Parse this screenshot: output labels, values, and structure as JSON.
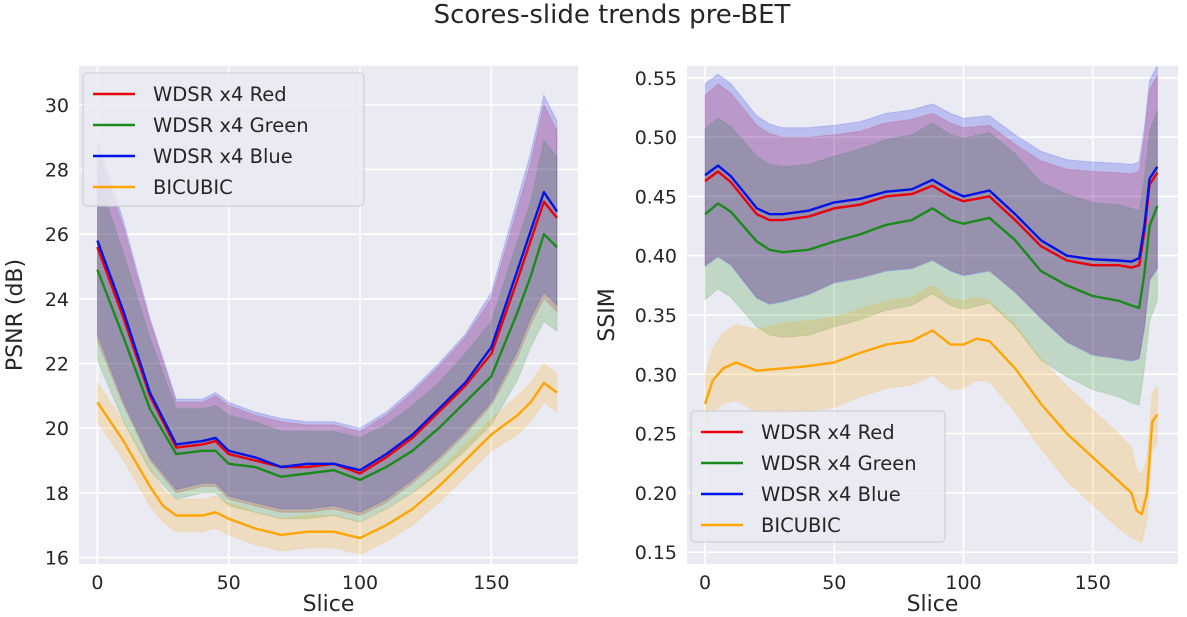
{
  "figure": {
    "suptitle": "Scores-slide trends pre-BET"
  },
  "chart_data": [
    {
      "type": "line",
      "xlabel": "Slice",
      "ylabel": "PSNR (dB)",
      "xlim": [
        -7,
        183
      ],
      "ylim": [
        15.8,
        31.2
      ],
      "xticks": [
        0,
        50,
        100,
        150
      ],
      "yticks": [
        16,
        18,
        20,
        22,
        24,
        26,
        28,
        30
      ],
      "grid": true,
      "legend": "upper-left",
      "bands": "mean ± std (shaded)",
      "series": [
        {
          "name": "WDSR x4 Red",
          "color": "#e8000b",
          "x": [
            0,
            10,
            20,
            30,
            40,
            45,
            50,
            60,
            70,
            80,
            90,
            100,
            110,
            120,
            130,
            140,
            150,
            160,
            165,
            170,
            175
          ],
          "y": [
            25.6,
            23.4,
            21.0,
            19.4,
            19.5,
            19.6,
            19.2,
            19.0,
            18.8,
            18.8,
            18.9,
            18.6,
            19.1,
            19.7,
            20.5,
            21.3,
            22.3,
            24.6,
            25.8,
            27.0,
            26.5
          ],
          "upper": [
            28.6,
            26.2,
            23.3,
            20.8,
            20.8,
            21.0,
            20.7,
            20.4,
            20.2,
            20.1,
            20.1,
            19.9,
            20.4,
            21.1,
            21.9,
            22.8,
            24.0,
            26.8,
            28.2,
            30.0,
            29.2
          ],
          "lower": [
            22.7,
            20.7,
            19.0,
            18.0,
            18.2,
            18.2,
            17.8,
            17.6,
            17.4,
            17.4,
            17.5,
            17.3,
            17.7,
            18.3,
            19.0,
            19.8,
            20.7,
            22.2,
            23.2,
            24.0,
            23.6
          ]
        },
        {
          "name": "WDSR x4 Green",
          "color": "#1a8a1a",
          "x": [
            0,
            10,
            20,
            30,
            40,
            45,
            50,
            60,
            70,
            80,
            90,
            100,
            110,
            120,
            130,
            140,
            150,
            160,
            165,
            170,
            175
          ],
          "y": [
            24.9,
            22.8,
            20.6,
            19.2,
            19.3,
            19.3,
            18.9,
            18.8,
            18.5,
            18.6,
            18.7,
            18.4,
            18.8,
            19.3,
            20.0,
            20.8,
            21.6,
            23.6,
            24.7,
            26.0,
            25.6
          ],
          "upper": [
            27.8,
            25.4,
            22.8,
            20.6,
            20.6,
            20.7,
            20.4,
            20.2,
            19.9,
            19.9,
            19.9,
            19.7,
            20.1,
            20.7,
            21.4,
            22.3,
            23.3,
            25.8,
            27.0,
            28.9,
            28.4
          ],
          "lower": [
            22.1,
            20.2,
            18.7,
            17.8,
            18.0,
            18.0,
            17.6,
            17.4,
            17.2,
            17.2,
            17.3,
            17.1,
            17.5,
            18.0,
            18.6,
            19.3,
            20.1,
            21.5,
            22.5,
            23.3,
            23.0
          ]
        },
        {
          "name": "WDSR x4 Blue",
          "color": "#0014e6",
          "x": [
            0,
            10,
            20,
            30,
            40,
            45,
            50,
            60,
            70,
            80,
            90,
            100,
            110,
            120,
            130,
            140,
            150,
            160,
            165,
            170,
            175
          ],
          "y": [
            25.8,
            23.6,
            21.1,
            19.5,
            19.6,
            19.7,
            19.3,
            19.1,
            18.8,
            18.9,
            18.9,
            18.7,
            19.2,
            19.8,
            20.6,
            21.4,
            22.5,
            24.9,
            26.1,
            27.3,
            26.7
          ],
          "upper": [
            28.9,
            26.4,
            23.4,
            20.9,
            20.9,
            21.1,
            20.8,
            20.5,
            20.3,
            20.2,
            20.2,
            20.0,
            20.5,
            21.2,
            22.0,
            22.9,
            24.2,
            27.1,
            28.5,
            30.3,
            29.5
          ],
          "lower": [
            22.9,
            20.8,
            19.1,
            18.1,
            18.3,
            18.3,
            17.9,
            17.7,
            17.5,
            17.5,
            17.6,
            17.4,
            17.8,
            18.4,
            19.1,
            19.9,
            20.8,
            22.4,
            23.4,
            24.2,
            23.8
          ]
        },
        {
          "name": "BICUBIC",
          "color": "#ffa500",
          "x": [
            0,
            10,
            20,
            25,
            30,
            40,
            45,
            50,
            60,
            70,
            80,
            90,
            100,
            110,
            120,
            130,
            140,
            150,
            160,
            165,
            170,
            175
          ],
          "y": [
            20.8,
            19.6,
            18.2,
            17.6,
            17.3,
            17.3,
            17.4,
            17.2,
            16.9,
            16.7,
            16.8,
            16.8,
            16.6,
            17.0,
            17.5,
            18.2,
            19.0,
            19.8,
            20.4,
            20.8,
            21.4,
            21.1
          ],
          "upper": [
            21.4,
            20.2,
            18.8,
            18.1,
            17.8,
            17.8,
            17.9,
            17.7,
            17.4,
            17.2,
            17.3,
            17.3,
            17.1,
            17.5,
            18.0,
            18.7,
            19.5,
            20.3,
            21.0,
            21.4,
            22.0,
            21.7
          ],
          "lower": [
            20.2,
            19.0,
            17.6,
            17.1,
            16.8,
            16.8,
            16.9,
            16.7,
            16.4,
            16.2,
            16.3,
            16.3,
            16.1,
            16.5,
            17.0,
            17.7,
            18.5,
            19.3,
            19.8,
            20.2,
            20.8,
            20.5
          ]
        }
      ]
    },
    {
      "type": "line",
      "xlabel": "Slice",
      "ylabel": "SSIM",
      "xlim": [
        -7,
        183
      ],
      "ylim": [
        0.14,
        0.56
      ],
      "xticks": [
        0,
        50,
        100,
        150
      ],
      "yticks": [
        0.15,
        0.2,
        0.25,
        0.3,
        0.35,
        0.4,
        0.45,
        0.5,
        0.55
      ],
      "grid": true,
      "legend": "lower-left",
      "bands": "mean ± std (shaded)",
      "series": [
        {
          "name": "WDSR x4 Red",
          "color": "#e8000b",
          "x": [
            0,
            5,
            10,
            20,
            25,
            30,
            40,
            50,
            60,
            70,
            80,
            88,
            95,
            100,
            110,
            120,
            130,
            140,
            150,
            160,
            165,
            168,
            170,
            172,
            175
          ],
          "y": [
            0.463,
            0.471,
            0.462,
            0.435,
            0.43,
            0.43,
            0.433,
            0.44,
            0.443,
            0.45,
            0.452,
            0.459,
            0.45,
            0.446,
            0.45,
            0.43,
            0.408,
            0.396,
            0.392,
            0.392,
            0.39,
            0.392,
            0.42,
            0.46,
            0.47
          ],
          "upper": [
            0.535,
            0.545,
            0.537,
            0.51,
            0.503,
            0.5,
            0.5,
            0.502,
            0.505,
            0.512,
            0.515,
            0.52,
            0.512,
            0.508,
            0.51,
            0.494,
            0.48,
            0.473,
            0.471,
            0.47,
            0.469,
            0.471,
            0.5,
            0.54,
            0.552
          ],
          "lower": [
            0.392,
            0.4,
            0.393,
            0.365,
            0.36,
            0.362,
            0.368,
            0.378,
            0.382,
            0.388,
            0.39,
            0.397,
            0.388,
            0.384,
            0.388,
            0.37,
            0.348,
            0.328,
            0.317,
            0.314,
            0.312,
            0.314,
            0.34,
            0.38,
            0.39
          ]
        },
        {
          "name": "WDSR x4 Green",
          "color": "#1a8a1a",
          "x": [
            0,
            5,
            10,
            20,
            25,
            30,
            40,
            50,
            60,
            70,
            80,
            88,
            95,
            100,
            110,
            120,
            130,
            140,
            150,
            160,
            165,
            168,
            170,
            172,
            175
          ],
          "y": [
            0.435,
            0.444,
            0.437,
            0.412,
            0.405,
            0.403,
            0.405,
            0.412,
            0.418,
            0.426,
            0.43,
            0.44,
            0.43,
            0.427,
            0.432,
            0.413,
            0.387,
            0.375,
            0.366,
            0.362,
            0.358,
            0.356,
            0.385,
            0.425,
            0.442
          ],
          "upper": [
            0.507,
            0.516,
            0.509,
            0.484,
            0.477,
            0.475,
            0.477,
            0.484,
            0.49,
            0.498,
            0.502,
            0.512,
            0.502,
            0.499,
            0.504,
            0.486,
            0.462,
            0.452,
            0.445,
            0.443,
            0.44,
            0.438,
            0.465,
            0.505,
            0.522
          ],
          "lower": [
            0.363,
            0.372,
            0.365,
            0.34,
            0.333,
            0.331,
            0.333,
            0.34,
            0.346,
            0.354,
            0.358,
            0.368,
            0.358,
            0.355,
            0.36,
            0.34,
            0.312,
            0.298,
            0.287,
            0.281,
            0.276,
            0.274,
            0.305,
            0.345,
            0.362
          ]
        },
        {
          "name": "WDSR x4 Blue",
          "color": "#0014e6",
          "x": [
            0,
            5,
            10,
            20,
            25,
            30,
            40,
            50,
            60,
            70,
            80,
            88,
            95,
            100,
            110,
            120,
            130,
            140,
            150,
            160,
            165,
            168,
            170,
            172,
            175
          ],
          "y": [
            0.468,
            0.476,
            0.467,
            0.44,
            0.435,
            0.435,
            0.438,
            0.445,
            0.448,
            0.454,
            0.456,
            0.464,
            0.455,
            0.45,
            0.455,
            0.435,
            0.413,
            0.4,
            0.397,
            0.396,
            0.395,
            0.398,
            0.425,
            0.465,
            0.475
          ],
          "upper": [
            0.545,
            0.553,
            0.545,
            0.518,
            0.511,
            0.508,
            0.508,
            0.51,
            0.513,
            0.52,
            0.523,
            0.528,
            0.52,
            0.516,
            0.518,
            0.502,
            0.488,
            0.481,
            0.479,
            0.478,
            0.477,
            0.479,
            0.508,
            0.548,
            0.56
          ],
          "lower": [
            0.391,
            0.399,
            0.392,
            0.364,
            0.359,
            0.361,
            0.367,
            0.377,
            0.381,
            0.387,
            0.389,
            0.396,
            0.387,
            0.383,
            0.387,
            0.369,
            0.347,
            0.327,
            0.316,
            0.313,
            0.311,
            0.313,
            0.339,
            0.379,
            0.389
          ]
        },
        {
          "name": "BICUBIC",
          "color": "#ffa500",
          "x": [
            0,
            3,
            7,
            12,
            20,
            30,
            40,
            50,
            60,
            70,
            80,
            88,
            95,
            100,
            105,
            110,
            120,
            130,
            140,
            150,
            160,
            165,
            167,
            169,
            171,
            173,
            175
          ],
          "y": [
            0.275,
            0.295,
            0.305,
            0.31,
            0.303,
            0.305,
            0.307,
            0.31,
            0.318,
            0.325,
            0.328,
            0.337,
            0.325,
            0.325,
            0.33,
            0.328,
            0.305,
            0.275,
            0.25,
            0.23,
            0.21,
            0.2,
            0.185,
            0.182,
            0.2,
            0.26,
            0.266
          ],
          "upper": [
            0.3,
            0.322,
            0.335,
            0.342,
            0.338,
            0.343,
            0.345,
            0.348,
            0.355,
            0.362,
            0.365,
            0.375,
            0.363,
            0.362,
            0.365,
            0.362,
            0.342,
            0.313,
            0.29,
            0.27,
            0.25,
            0.238,
            0.22,
            0.215,
            0.23,
            0.284,
            0.29
          ],
          "lower": [
            0.25,
            0.268,
            0.275,
            0.278,
            0.268,
            0.267,
            0.269,
            0.272,
            0.281,
            0.288,
            0.291,
            0.299,
            0.287,
            0.288,
            0.295,
            0.294,
            0.268,
            0.237,
            0.21,
            0.19,
            0.17,
            0.162,
            0.16,
            0.158,
            0.178,
            0.236,
            0.242
          ]
        }
      ]
    }
  ]
}
